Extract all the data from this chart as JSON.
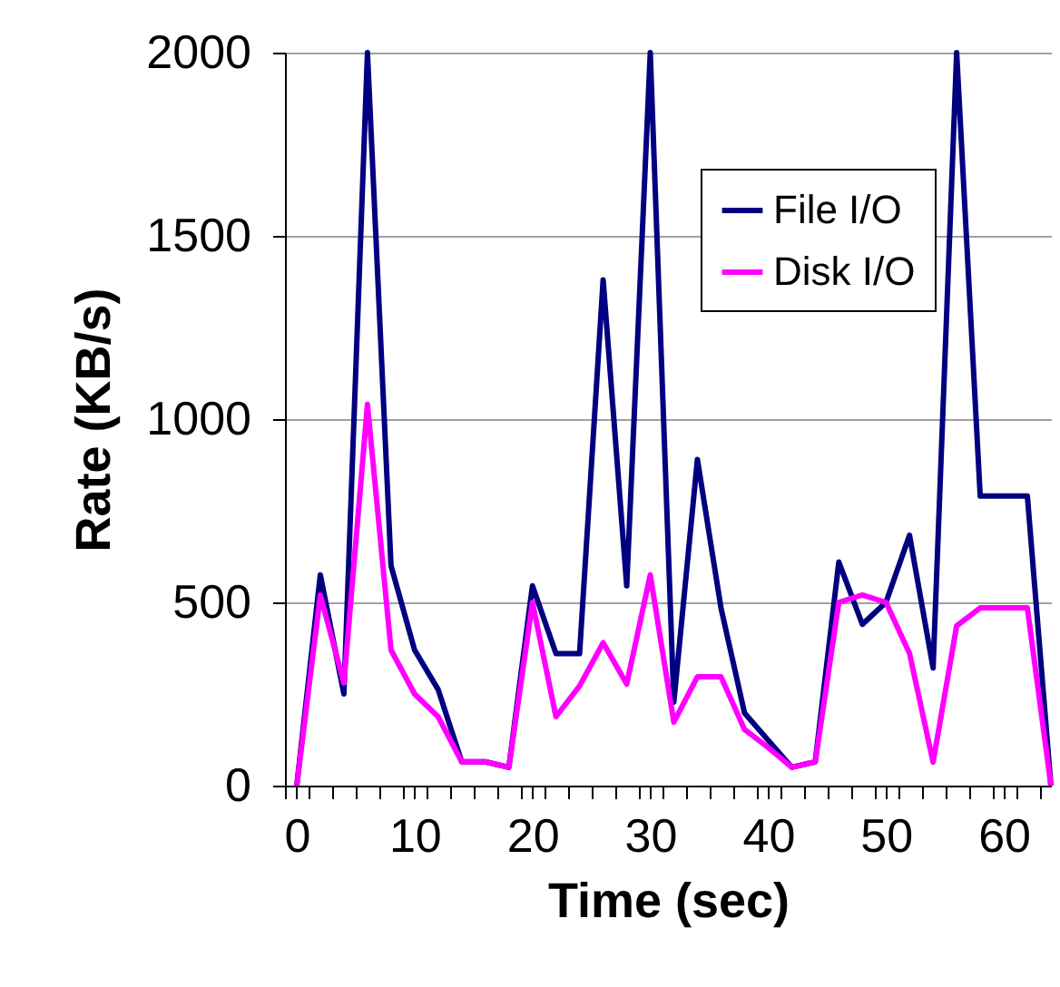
{
  "chart_data": {
    "type": "line",
    "xlabel": "Time (sec)",
    "ylabel": "Rate (KB/s)",
    "x": [
      0,
      2,
      4,
      6,
      8,
      10,
      12,
      14,
      16,
      18,
      20,
      22,
      24,
      26,
      28,
      30,
      32,
      34,
      36,
      38,
      40,
      42,
      44,
      46,
      48,
      50,
      52,
      54,
      56,
      58,
      60,
      62,
      64
    ],
    "series": [
      {
        "name": "File I/O",
        "color": "#000080",
        "values": [
          0,
          575,
          250,
          2000,
          600,
          370,
          262,
          65,
          65,
          50,
          545,
          360,
          360,
          1380,
          545,
          2000,
          228,
          890,
          485,
          198,
          124,
          50,
          65,
          610,
          440,
          500,
          683,
          321,
          2000,
          790,
          790,
          790,
          0
        ]
      },
      {
        "name": "Disk I/O",
        "color": "#ff00ff",
        "values": [
          0,
          520,
          280,
          1040,
          370,
          250,
          188,
          65,
          65,
          50,
          500,
          188,
          272,
          390,
          277,
          575,
          173,
          297,
          297,
          153,
          104,
          50,
          65,
          500,
          520,
          500,
          361,
          64,
          436,
          485,
          485,
          485,
          0
        ]
      }
    ],
    "xlim": [
      -1,
      64
    ],
    "xticks": [
      {
        "value": -1,
        "label": null
      },
      0,
      {
        "value": 1,
        "label": null
      },
      {
        "value": 3,
        "label": null
      },
      {
        "value": 5,
        "label": null
      },
      {
        "value": 7,
        "label": null
      },
      {
        "value": 9,
        "label": null
      },
      10,
      {
        "value": 11,
        "label": null
      },
      {
        "value": 13,
        "label": null
      },
      {
        "value": 15,
        "label": null
      },
      {
        "value": 17,
        "label": null
      },
      {
        "value": 19,
        "label": null
      },
      20,
      {
        "value": 21,
        "label": null
      },
      {
        "value": 23,
        "label": null
      },
      {
        "value": 25,
        "label": null
      },
      {
        "value": 27,
        "label": null
      },
      {
        "value": 29,
        "label": null
      },
      30,
      {
        "value": 31,
        "label": null
      },
      {
        "value": 33,
        "label": null
      },
      {
        "value": 35,
        "label": null
      },
      {
        "value": 37,
        "label": null
      },
      {
        "value": 39,
        "label": null
      },
      40,
      {
        "value": 41,
        "label": null
      },
      {
        "value": 43,
        "label": null
      },
      {
        "value": 45,
        "label": null
      },
      {
        "value": 47,
        "label": null
      },
      {
        "value": 49,
        "label": null
      },
      50,
      {
        "value": 51,
        "label": null
      },
      {
        "value": 53,
        "label": null
      },
      {
        "value": 55,
        "label": null
      },
      {
        "value": 57,
        "label": null
      },
      {
        "value": 59,
        "label": null
      },
      60,
      {
        "value": 61,
        "label": null
      },
      {
        "value": 63,
        "label": null
      }
    ],
    "ylim": [
      0,
      2000
    ],
    "yticks": [
      0,
      500,
      1000,
      1500,
      2000
    ],
    "grid": "y",
    "legend": "top right",
    "marker": "none",
    "line_style": "solid"
  }
}
